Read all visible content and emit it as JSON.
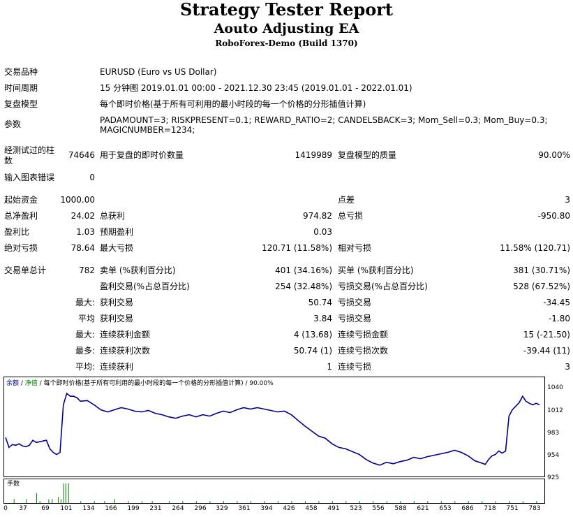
{
  "header": {
    "title": "Strategy Tester Report",
    "ea_name": "Aouto Adjusting EA",
    "server": "RoboForex-Demo (Build 1370)"
  },
  "info": {
    "symbol_label": "交易品种",
    "symbol_value": "EURUSD (Euro vs US Dollar)",
    "period_label": "时间周期",
    "period_value": "15 分钟图 2019.01.01 00:00 - 2021.12.30 23:45 (2019.01.01 - 2022.01.01)",
    "model_label": "复盘模型",
    "model_value": "每个即时价格(基于所有可利用的最小时段的每一个价格的分形插值计算)",
    "params_label": "参数",
    "params_line1": "PADAMOUNT=3; RISKPRESENT=0.1; REWARD_RATIO=2; CANDELSBACK=3; Mom_Sell=0.3; Mom_Buy=0.3;",
    "params_line2": "MAGICNUMBER=1234;"
  },
  "stats": {
    "bars_label_1": "经测试过的柱",
    "bars_label_2": "数",
    "bars_value": "74646",
    "ticks_label": "用于复盘的即时价数量",
    "ticks_value": "1419989",
    "quality_label": "复盘模型的质量",
    "quality_value": "90.00%",
    "errors_label": "输入图表错误",
    "errors_value": "0",
    "deposit_label": "起始资金",
    "deposit_value": "1000.00",
    "spread_label": "点差",
    "spread_value": "3",
    "net_label": "总净盈利",
    "net_value": "24.02",
    "gross_profit_label": "总获利",
    "gross_profit_value": "974.82",
    "gross_loss_label": "总亏损",
    "gross_loss_value": "-950.80",
    "pf_label": "盈利比",
    "pf_value": "1.03",
    "payoff_label": "预期盈利",
    "payoff_value": "0.03",
    "abs_dd_label": "绝对亏损",
    "abs_dd_value": "78.64",
    "max_dd_label": "最大亏损",
    "max_dd_value": "120.71 (11.58%)",
    "rel_dd_label": "相对亏损",
    "rel_dd_value": "11.58% (120.71)",
    "trades_label": "交易单总计",
    "trades_value": "782",
    "short_label": "卖单 (%获利百分比)",
    "short_value": "401 (34.16%)",
    "long_label": "买单 (%获利百分比)",
    "long_value": "381 (30.71%)",
    "profit_trades_label": "盈利交易(%占总百分比)",
    "profit_trades_value": "254 (32.48%)",
    "loss_trades_label": "亏损交易(%占总百分比)",
    "loss_trades_value": "528 (67.52%)",
    "largest_label": "最大:",
    "largest_profit_label": "获利交易",
    "largest_profit_value": "50.74",
    "largest_loss_label": "亏损交易",
    "largest_loss_value": "-34.45",
    "average_label": "平均",
    "average_profit_label": "获利交易",
    "average_profit_value": "3.84",
    "average_loss_label": "亏损交易",
    "average_loss_value": "-1.80",
    "max_consec_label": "最大:",
    "max_consec_wins_label": "连续获利金额",
    "max_consec_wins_value": "4 (13.68)",
    "max_consec_losses_label": "连续亏损金额",
    "max_consec_losses_value": "15 (-21.50)",
    "most_label": "最多:",
    "most_profit_label": "连续获利次数",
    "most_profit_value": "50.74 (1)",
    "most_loss_label": "连续亏损次数",
    "most_loss_value": "-39.44 (11)",
    "avg_consec_label": "平均:",
    "avg_consec_wins_label": "连续获利",
    "avg_consec_wins_value": "1",
    "avg_consec_losses_label": "连续亏损",
    "avg_consec_losses_value": "3"
  },
  "chart_caption": {
    "balance": "余额",
    "sep1": " / ",
    "equity": "净值",
    "sep2": " / ",
    "model": "每个即时价格(基于所有可利用的最小时段的每一个价格的分形插值计算)",
    "sep3": " / ",
    "quality": "90.00%"
  },
  "volume_caption": "手数",
  "colors": {
    "balance_line": "#00008b",
    "volume_bars": "#008000",
    "balance_caption": "#00008b",
    "equity_caption": "#008000"
  },
  "chart_data": {
    "type": "line",
    "series": [
      {
        "name": "余额",
        "x": [
          0,
          5,
          10,
          15,
          20,
          25,
          30,
          35,
          40,
          45,
          50,
          55,
          60,
          65,
          70,
          75,
          80,
          85,
          90,
          95,
          100,
          105,
          110,
          120,
          130,
          140,
          150,
          160,
          170,
          180,
          190,
          200,
          210,
          220,
          230,
          240,
          250,
          260,
          270,
          280,
          290,
          300,
          310,
          320,
          330,
          340,
          350,
          360,
          370,
          380,
          390,
          400,
          410,
          420,
          430,
          440,
          450,
          460,
          470,
          480,
          490,
          500,
          510,
          520,
          530,
          540,
          550,
          560,
          570,
          580,
          590,
          600,
          610,
          620,
          630,
          640,
          650,
          660,
          670,
          680,
          690,
          700,
          705,
          710,
          715,
          720,
          725,
          730,
          735,
          740,
          745,
          750,
          755,
          760,
          765,
          770,
          775,
          780,
          785
        ],
        "values": [
          976,
          962,
          966,
          965,
          967,
          964,
          963,
          965,
          972,
          969,
          970,
          971,
          972,
          960,
          955,
          952,
          955,
          1022,
          1038,
          1034,
          1034,
          1032,
          1027,
          1028,
          1022,
          1015,
          1012,
          1015,
          1018,
          1016,
          1013,
          1012,
          1014,
          1010,
          1008,
          1005,
          1003,
          1006,
          1008,
          1005,
          1008,
          1006,
          1010,
          1013,
          1011,
          1015,
          1018,
          1016,
          1018,
          1016,
          1014,
          1012,
          1013,
          1008,
          1000,
          992,
          985,
          978,
          975,
          967,
          962,
          960,
          956,
          952,
          945,
          940,
          937,
          941,
          939,
          942,
          944,
          948,
          946,
          949,
          951,
          953,
          955,
          958,
          955,
          950,
          943,
          940,
          938,
          945,
          950,
          952,
          957,
          954,
          957,
          1006,
          1015,
          1020,
          1025,
          1034,
          1027,
          1024,
          1022,
          1024,
          1022
        ]
      }
    ],
    "volume": {
      "name": "手数",
      "x": [
        12,
        30,
        45,
        50,
        63,
        68,
        77,
        81,
        85,
        88,
        92,
        110,
        130,
        145,
        160,
        180,
        200,
        215,
        240,
        260,
        280,
        300,
        320,
        340,
        360,
        380,
        400,
        420,
        440,
        460,
        480,
        500,
        520,
        540,
        560,
        580,
        600,
        620,
        640,
        660,
        680,
        700,
        720,
        740,
        760,
        780
      ],
      "values": [
        0.02,
        0.02,
        0.05,
        0.01,
        0.02,
        0.02,
        0.03,
        0.02,
        0.1,
        0.1,
        0.1,
        0.01,
        0.01,
        0.01,
        0.02,
        0.01,
        0.01,
        0.01,
        0.01,
        0.01,
        0.01,
        0.01,
        0.01,
        0.01,
        0.01,
        0.01,
        0.01,
        0.01,
        0.01,
        0.01,
        0.01,
        0.01,
        0.01,
        0.01,
        0.01,
        0.01,
        0.01,
        0.01,
        0.01,
        0.01,
        0.01,
        0.01,
        0.01,
        0.01,
        0.01,
        0.01
      ]
    },
    "xlim": [
      0,
      790
    ],
    "ylim": [
      925,
      1045
    ],
    "y_ticks": [
      1040,
      1012,
      983,
      954,
      925
    ],
    "x_ticks": [
      0,
      37,
      69,
      101,
      134,
      166,
      199,
      231,
      264,
      296,
      329,
      361,
      394,
      426,
      458,
      491,
      523,
      556,
      588,
      621,
      653,
      686,
      718,
      751,
      783
    ],
    "grid": false,
    "legend": "top-left"
  }
}
